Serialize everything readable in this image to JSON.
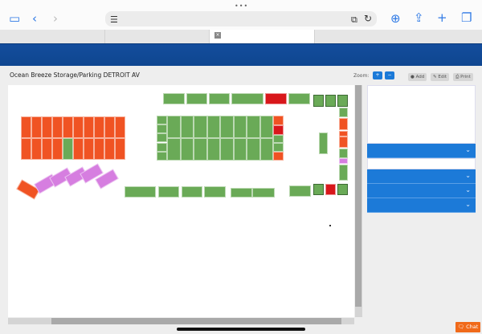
{
  "browser": {
    "menu_dots": "•••",
    "icons": [
      "sidebar-icon",
      "back-icon",
      "forward-icon",
      "reader-icon",
      "extension-icon",
      "reload-icon",
      "download-icon",
      "share-icon",
      "new-tab-icon",
      "tabs-icon"
    ],
    "tab_close": "×"
  },
  "page": {
    "title": "Ocean Breeze Storage/Parking DETROIT AV",
    "zoom_label": "Zoom:",
    "zoom_in": "+",
    "zoom_out": "−",
    "add": "Add",
    "edit": "Edit",
    "print": "Print",
    "chat": "Chat"
  },
  "colors": {
    "available": "#6aaa57",
    "occupied": "#f05323",
    "reserved": "#d8171b",
    "other": "#d67ee0",
    "accent": "#1c7ad8",
    "banner": "#134d9c"
  }
}
